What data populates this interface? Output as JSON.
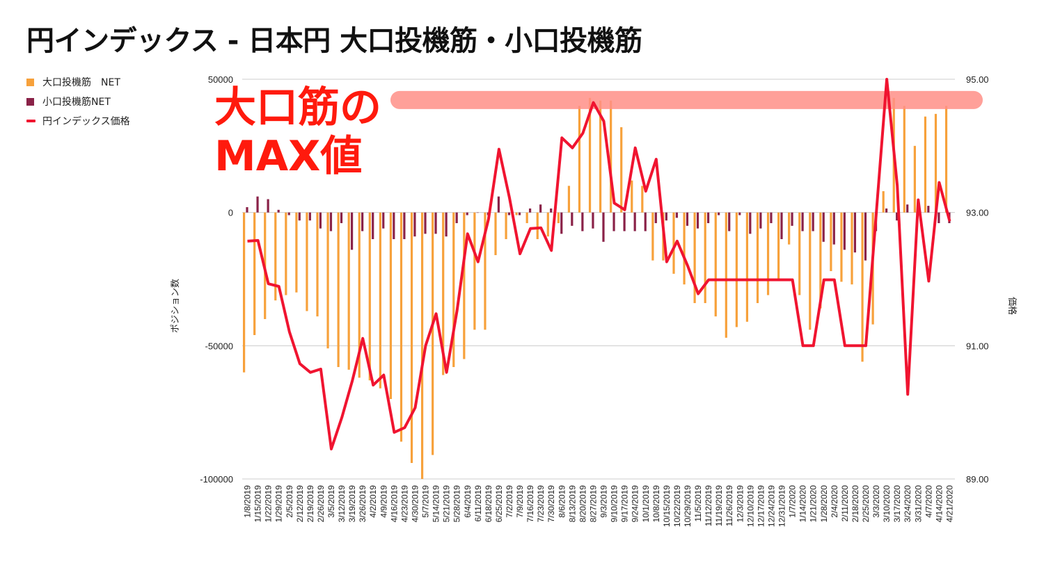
{
  "chart_data": {
    "type": "bar",
    "title": "円インデックス - 日本円 大口投機筋・小口投機筋",
    "xlabel": "",
    "ylabel": "ポジション数",
    "y2label": "価格",
    "ylim": [
      -100000,
      50000
    ],
    "y2lim": [
      89.0,
      95.0
    ],
    "yticks": [
      "50000",
      "0",
      "-50000",
      "-100000"
    ],
    "y2ticks": [
      "95.00",
      "93.00",
      "91.00",
      "89.00"
    ],
    "grid": true,
    "legend_position": "top-left",
    "colors": {
      "large": "#f7a13b",
      "small": "#8a2248",
      "price": "#f01430",
      "highlight": "#ff8f87"
    },
    "categories": [
      "1/8/2019",
      "1/15/2019",
      "1/22/2019",
      "1/29/2019",
      "2/5/2019",
      "2/12/2019",
      "2/19/2019",
      "2/26/2019",
      "3/5/2019",
      "3/12/2019",
      "3/19/2019",
      "3/26/2019",
      "4/2/2019",
      "4/9/2019",
      "4/16/2019",
      "4/23/2019",
      "4/30/2019",
      "5/7/2019",
      "5/14/2019",
      "5/21/2019",
      "5/28/2019",
      "6/4/2019",
      "6/11/2019",
      "6/18/2019",
      "6/25/2019",
      "7/2/2019",
      "7/9/2019",
      "7/16/2019",
      "7/23/2019",
      "7/30/2019",
      "8/6/2019",
      "8/13/2019",
      "8/20/2019",
      "8/27/2019",
      "9/3/2019",
      "9/10/2019",
      "9/17/2019",
      "9/24/2019",
      "10/1/2019",
      "10/8/2019",
      "10/15/2019",
      "10/22/2019",
      "10/29/2019",
      "11/5/2019",
      "11/12/2019",
      "11/19/2019",
      "11/26/2019",
      "12/3/2019",
      "12/10/2019",
      "12/17/2019",
      "12/24/2019",
      "12/31/2019",
      "1/7/2020",
      "1/14/2020",
      "1/21/2020",
      "1/28/2020",
      "2/4/2020",
      "2/11/2020",
      "2/18/2020",
      "2/25/2020",
      "3/3/2020",
      "3/10/2020",
      "3/17/2020",
      "3/24/2020",
      "3/31/2020",
      "4/7/2020",
      "4/14/2020",
      "4/21/2020"
    ],
    "series": [
      {
        "name": "大口投機筋　NET",
        "kind": "bar",
        "values": [
          -60000,
          -46000,
          -40000,
          -33000,
          -31000,
          -30000,
          -37000,
          -39000,
          -51000,
          -58000,
          -59000,
          -62000,
          -63000,
          -66000,
          -70000,
          -86000,
          -94000,
          -100000,
          -91000,
          -61000,
          -58000,
          -55000,
          -44000,
          -44000,
          -16000,
          -10000,
          -1000,
          -4000,
          -10000,
          -9000,
          -4000,
          10000,
          40000,
          43000,
          42000,
          42000,
          32000,
          12000,
          10000,
          -18000,
          -18000,
          -23000,
          -27000,
          -34000,
          -34000,
          -39000,
          -47000,
          -43000,
          -41000,
          -34000,
          -31000,
          -25000,
          -12000,
          -31000,
          -44000,
          -36000,
          -22000,
          -26000,
          -27000,
          -56000,
          -42000,
          8000,
          43000,
          40000,
          25000,
          36000,
          37000,
          40000
        ]
      },
      {
        "name": "小口投機筋NET",
        "kind": "bar",
        "values": [
          2000,
          6000,
          5000,
          1000,
          -1000,
          -3000,
          -3000,
          -6000,
          -7000,
          -4000,
          -14000,
          -7000,
          -10000,
          -6000,
          -10000,
          -10000,
          -9000,
          -8000,
          -8000,
          -9000,
          -4000,
          -1000,
          0,
          -1000,
          6000,
          -1000,
          -1000,
          1500,
          3000,
          1500,
          -8000,
          -5000,
          -7000,
          -6000,
          -11000,
          -7000,
          -7000,
          -7000,
          -7000,
          -4000,
          -3000,
          -2000,
          -5000,
          -6000,
          -4000,
          -1000,
          -7000,
          -1000,
          -8000,
          -6000,
          -4000,
          -10000,
          -5000,
          -7000,
          -7000,
          -11000,
          -12000,
          -14000,
          -15000,
          -18000,
          -7000,
          1500,
          -3000,
          3000,
          2000,
          2500,
          -4000,
          -4000
        ]
      },
      {
        "name": "円インデックス価格",
        "kind": "line",
        "axis": "right",
        "values": [
          92.57,
          92.58,
          91.93,
          91.89,
          91.21,
          90.73,
          90.6,
          90.65,
          89.45,
          89.92,
          90.47,
          91.11,
          90.41,
          90.56,
          89.7,
          89.77,
          90.07,
          91.0,
          91.48,
          90.6,
          91.53,
          92.68,
          92.26,
          92.9,
          93.95,
          93.22,
          92.38,
          92.76,
          92.77,
          92.43,
          94.12,
          93.97,
          94.19,
          94.65,
          94.37,
          93.14,
          93.04,
          93.97,
          93.32,
          93.8,
          92.26,
          92.57,
          92.2,
          91.78,
          91.99,
          91.99,
          91.99,
          91.99,
          91.99,
          91.99,
          91.99,
          91.99,
          91.99,
          91.0,
          91.0,
          91.99,
          91.99,
          91.0,
          91.0,
          91.0,
          93.0,
          95.0,
          93.4,
          90.27,
          93.19,
          91.97,
          93.45,
          92.87
        ]
      }
    ],
    "annotations": [
      {
        "text": "大口筋の"
      },
      {
        "text": "MAX値"
      }
    ]
  }
}
